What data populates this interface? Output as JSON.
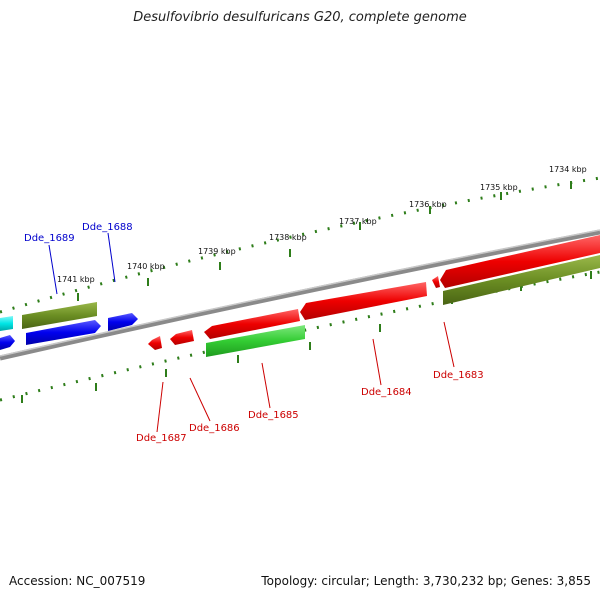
{
  "title": "Desulfovibrio desulfuricans G20, complete genome",
  "accession": "Accession: NC_007519",
  "summary": "Topology: circular; Length: 3,730,232 bp; Genes: 3,855",
  "colors": {
    "backbone": "#8a8a8a",
    "ticks": "#2e7d1a",
    "blue": "#0000ee",
    "cyan": "#00e6e6",
    "olive": "#6b8e23",
    "red": "#ee0000",
    "green": "#33cc33"
  },
  "kbp_labels": [
    "1734 kbp",
    "1735 kbp",
    "1736 kbp",
    "1737 kbp",
    "1738 kbp",
    "1739 kbp",
    "1740 kbp",
    "1741 kbp"
  ],
  "genes": [
    {
      "name": "Dde_1689",
      "color": "blue"
    },
    {
      "name": "Dde_1688",
      "color": "blue"
    },
    {
      "name": "Dde_1687",
      "color": "red"
    },
    {
      "name": "Dde_1686",
      "color": "red"
    },
    {
      "name": "Dde_1685",
      "color": "red"
    },
    {
      "name": "Dde_1684",
      "color": "red"
    },
    {
      "name": "Dde_1683",
      "color": "red"
    }
  ]
}
